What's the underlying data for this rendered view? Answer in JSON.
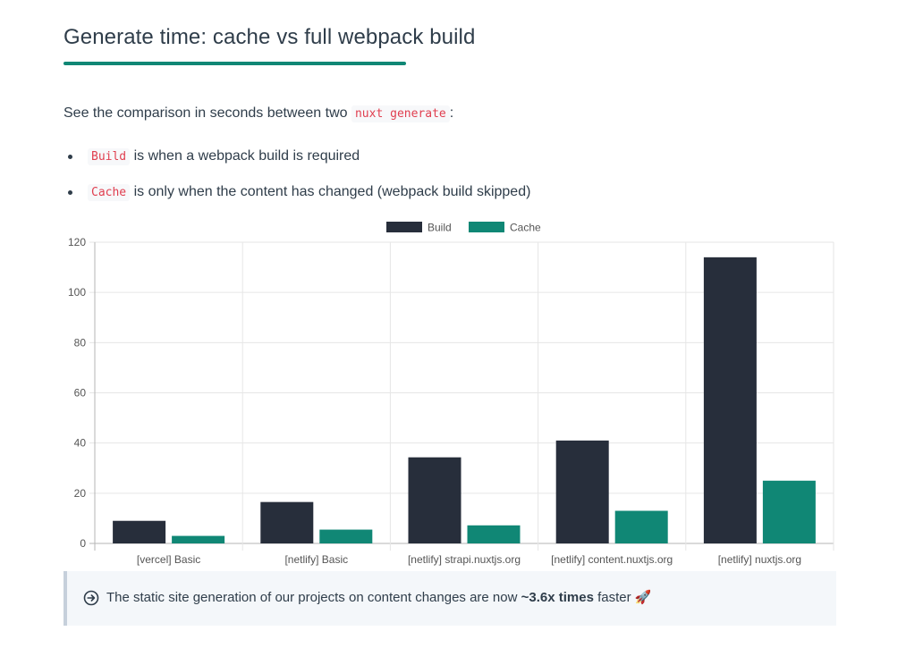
{
  "heading": {
    "title": "Generate time: cache vs full webpack build"
  },
  "intro": {
    "text_before": "See the comparison in seconds between two",
    "code": "nuxt generate",
    "text_after": ":"
  },
  "bullets": [
    {
      "code": "Build",
      "text": "is when a webpack build is required"
    },
    {
      "code": "Cache",
      "text": "is only when the content has changed (webpack build skipped)"
    }
  ],
  "chart_data": {
    "type": "bar",
    "categories": [
      "[vercel] Basic",
      "[netlify] Basic",
      "[netlify] strapi.nuxtjs.org",
      "[netlify] content.nuxtjs.org",
      "[netlify] nuxtjs.org"
    ],
    "series": [
      {
        "name": "Build",
        "color": "#272e3b",
        "values": [
          9,
          16.5,
          34.3,
          41,
          114
        ]
      },
      {
        "name": "Cache",
        "color": "#108775",
        "values": [
          3,
          5.5,
          7.2,
          13,
          25
        ]
      }
    ],
    "ylim": [
      0,
      120
    ],
    "yticks": [
      0,
      20,
      40,
      60,
      80,
      100,
      120
    ],
    "grid": true,
    "legend_position": "top-center"
  },
  "callout": {
    "icon": "arrow-circle-right-icon",
    "text_before": "The static site generation of our projects on content changes are now",
    "highlight": "~3.6x times",
    "text_after": "faster",
    "emoji": "🚀"
  }
}
